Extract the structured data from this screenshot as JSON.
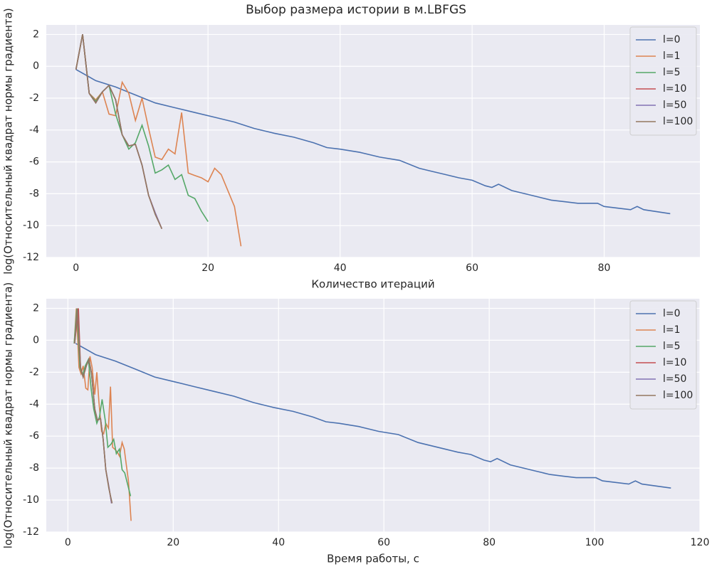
{
  "title": "Выбор размера истории в м.LBFGS",
  "chart_data": [
    {
      "type": "line",
      "xlabel": "Количество итераций",
      "ylabel": "log(Относительный квадрат нормы градиента)",
      "xlim": [
        -4.5,
        94.5
      ],
      "ylim": [
        -12,
        2.6
      ],
      "xticks": [
        0,
        20,
        40,
        60,
        80
      ],
      "yticks": [
        -12,
        -10,
        -8,
        -6,
        -4,
        -2,
        0,
        2
      ],
      "grid": true,
      "legend": "upper right",
      "series": [
        {
          "name": "l=0",
          "color": "#4c72b0",
          "x": [
            0,
            3,
            6,
            9,
            12,
            15,
            18,
            21,
            24,
            27,
            30,
            33,
            36,
            38,
            40,
            43,
            46,
            49,
            52,
            54,
            56,
            58,
            60,
            62,
            63,
            64,
            66,
            68,
            70,
            72,
            74,
            76,
            79,
            80,
            84,
            85,
            86,
            90
          ],
          "values": [
            -0.2,
            -0.9,
            -1.3,
            -1.8,
            -2.3,
            -2.6,
            -2.9,
            -3.2,
            -3.5,
            -3.9,
            -4.2,
            -4.45,
            -4.8,
            -5.1,
            -5.2,
            -5.4,
            -5.7,
            -5.9,
            -6.4,
            -6.6,
            -6.8,
            -7.0,
            -7.15,
            -7.5,
            -7.6,
            -7.4,
            -7.8,
            -8.0,
            -8.2,
            -8.4,
            -8.5,
            -8.6,
            -8.6,
            -8.8,
            -9.0,
            -8.8,
            -9.0,
            -9.25
          ]
        },
        {
          "name": "l=1",
          "color": "#dd8452",
          "x": [
            0,
            1,
            2,
            3,
            4,
            5,
            6,
            7,
            8,
            9,
            10,
            11,
            12,
            13,
            14,
            15,
            16,
            17,
            18,
            19,
            20,
            21,
            22,
            23,
            24,
            25
          ],
          "values": [
            -0.2,
            2.0,
            -1.7,
            -2.1,
            -1.6,
            -3.0,
            -3.1,
            -1.0,
            -1.7,
            -3.4,
            -2.0,
            -3.9,
            -5.7,
            -5.85,
            -5.2,
            -5.5,
            -2.9,
            -6.7,
            -6.85,
            -7.0,
            -7.25,
            -6.4,
            -6.8,
            -7.8,
            -8.8,
            -11.3
          ]
        },
        {
          "name": "l=5",
          "color": "#55a868",
          "x": [
            0,
            1,
            2,
            3,
            4,
            5,
            6,
            7,
            8,
            9,
            10,
            11,
            12,
            13,
            14,
            15,
            16,
            17,
            18,
            19,
            20
          ],
          "values": [
            -0.2,
            2.0,
            -1.7,
            -2.2,
            -1.6,
            -1.2,
            -3.0,
            -4.3,
            -5.2,
            -4.8,
            -3.7,
            -5.0,
            -6.7,
            -6.5,
            -6.2,
            -7.1,
            -6.8,
            -8.1,
            -8.3,
            -9.1,
            -9.75
          ]
        },
        {
          "name": "l=10",
          "color": "#c44e52",
          "x": [
            0,
            1,
            2,
            3,
            4,
            5,
            6,
            7,
            8,
            9,
            10,
            11,
            12,
            13
          ],
          "values": [
            -0.2,
            2.0,
            -1.7,
            -2.3,
            -1.6,
            -1.2,
            -2.1,
            -4.3,
            -5.0,
            -4.9,
            -6.2,
            -8.1,
            -9.2,
            -10.2
          ]
        },
        {
          "name": "l=50",
          "color": "#8172b3",
          "x": [
            0,
            1,
            2,
            3,
            4,
            5,
            6,
            7,
            8,
            9,
            10,
            11,
            12,
            13
          ],
          "values": [
            -0.2,
            2.0,
            -1.7,
            -2.3,
            -1.6,
            -1.2,
            -2.1,
            -4.3,
            -5.0,
            -4.9,
            -6.2,
            -8.1,
            -9.2,
            -10.2
          ]
        },
        {
          "name": "l=100",
          "color": "#937860",
          "x": [
            0,
            1,
            2,
            3,
            4,
            5,
            6,
            7,
            8,
            9,
            10,
            11,
            12,
            13
          ],
          "values": [
            -0.2,
            2.0,
            -1.7,
            -2.3,
            -1.6,
            -1.2,
            -2.1,
            -4.3,
            -5.0,
            -4.9,
            -6.2,
            -8.1,
            -9.3,
            -10.2
          ]
        }
      ]
    },
    {
      "type": "line",
      "xlabel": "Время работы, с",
      "ylabel": "log(Относительный квадрат нормы градиента)",
      "xlim": [
        -4.1,
        120
      ],
      "ylim": [
        -12,
        2.6
      ],
      "xticks": [
        0,
        20,
        40,
        60,
        80,
        100,
        120
      ],
      "yticks": [
        -12,
        -10,
        -8,
        -6,
        -4,
        -2,
        0,
        2
      ],
      "grid": true,
      "legend": "upper right",
      "series": [
        {
          "name": "l=0",
          "color": "#4c72b0",
          "x": [
            1.5,
            5.25,
            9,
            12.75,
            16.5,
            20.25,
            24,
            27.75,
            31.5,
            35.25,
            39,
            42.75,
            46.5,
            49,
            51.5,
            55.25,
            59,
            62.75,
            66.5,
            69,
            71.5,
            74,
            76.5,
            79,
            80.25,
            81.5,
            84,
            86.5,
            89,
            91.5,
            94,
            96.5,
            100.25,
            101.5,
            106.5,
            107.75,
            109,
            114.5
          ],
          "values": [
            -0.2,
            -0.9,
            -1.3,
            -1.8,
            -2.3,
            -2.6,
            -2.9,
            -3.2,
            -3.5,
            -3.9,
            -4.2,
            -4.45,
            -4.8,
            -5.1,
            -5.2,
            -5.4,
            -5.7,
            -5.9,
            -6.4,
            -6.6,
            -6.8,
            -7.0,
            -7.15,
            -7.5,
            -7.6,
            -7.4,
            -7.8,
            -8.0,
            -8.2,
            -8.4,
            -8.5,
            -8.6,
            -8.6,
            -8.8,
            -9.0,
            -8.8,
            -9.0,
            -9.25
          ]
        },
        {
          "name": "l=1",
          "color": "#dd8452",
          "x": [
            1.2,
            1.6,
            2.1,
            2.5,
            2.9,
            3.4,
            3.8,
            4.2,
            4.6,
            5.1,
            5.5,
            5.9,
            6.4,
            6.8,
            7.2,
            7.7,
            8.1,
            8.5,
            9.0,
            9.4,
            9.8,
            10.3,
            10.7,
            11.1,
            11.5,
            12.0
          ],
          "values": [
            -0.2,
            2.0,
            -1.7,
            -2.1,
            -1.6,
            -3.0,
            -3.1,
            -1.0,
            -1.7,
            -3.4,
            -2.0,
            -3.9,
            -5.7,
            -5.85,
            -5.2,
            -5.5,
            -2.9,
            -6.7,
            -6.85,
            -7.0,
            -7.25,
            -6.4,
            -6.8,
            -7.8,
            -8.8,
            -11.3
          ]
        },
        {
          "name": "l=5",
          "color": "#55a868",
          "x": [
            1.2,
            1.7,
            2.3,
            2.8,
            3.3,
            3.9,
            4.4,
            4.9,
            5.5,
            6.0,
            6.5,
            7.1,
            7.6,
            8.2,
            8.7,
            9.2,
            9.8,
            10.3,
            10.8,
            11.4,
            11.9
          ],
          "values": [
            -0.2,
            2.0,
            -1.7,
            -2.2,
            -1.6,
            -1.2,
            -3.0,
            -4.3,
            -5.2,
            -4.8,
            -3.7,
            -5.0,
            -6.7,
            -6.5,
            -6.2,
            -7.1,
            -6.8,
            -8.1,
            -8.3,
            -9.1,
            -9.75
          ]
        },
        {
          "name": "l=10",
          "color": "#c44e52",
          "x": [
            1.3,
            2.0,
            2.4,
            2.9,
            3.5,
            4.0,
            4.5,
            5.1,
            5.6,
            6.2,
            6.7,
            7.2,
            7.8,
            8.3
          ],
          "values": [
            -0.2,
            2.0,
            -1.7,
            -2.3,
            -1.6,
            -1.2,
            -2.1,
            -4.3,
            -5.0,
            -4.9,
            -6.2,
            -8.1,
            -9.2,
            -10.2
          ]
        },
        {
          "name": "l=50",
          "color": "#8172b3",
          "x": [
            1.3,
            1.8,
            2.4,
            2.9,
            3.5,
            4.0,
            4.5,
            5.1,
            5.6,
            6.2,
            6.7,
            7.2,
            7.8,
            8.3
          ],
          "values": [
            -0.2,
            2.0,
            -1.7,
            -2.3,
            -1.6,
            -1.2,
            -2.1,
            -4.3,
            -5.0,
            -4.9,
            -6.2,
            -8.1,
            -9.2,
            -10.2
          ]
        },
        {
          "name": "l=100",
          "color": "#937860",
          "x": [
            1.3,
            1.8,
            2.4,
            2.9,
            3.5,
            4.0,
            4.5,
            5.1,
            5.6,
            6.2,
            6.7,
            7.2,
            7.8,
            8.4
          ],
          "values": [
            -0.2,
            2.0,
            -1.7,
            -2.3,
            -1.6,
            -1.2,
            -2.1,
            -4.3,
            -5.0,
            -4.9,
            -6.2,
            -8.1,
            -9.3,
            -10.2
          ]
        }
      ]
    }
  ]
}
